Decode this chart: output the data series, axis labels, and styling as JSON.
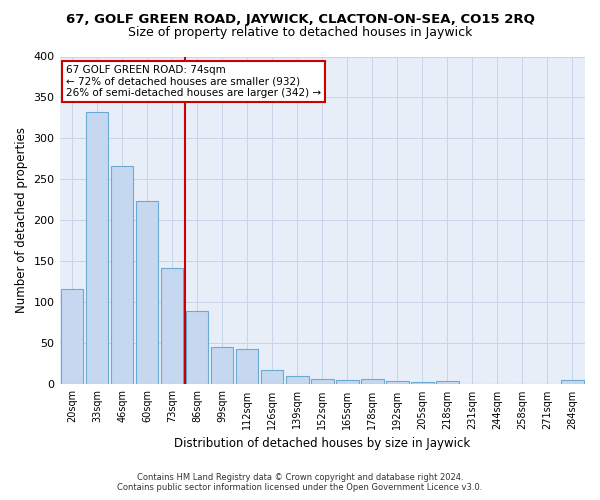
{
  "title": "67, GOLF GREEN ROAD, JAYWICK, CLACTON-ON-SEA, CO15 2RQ",
  "subtitle": "Size of property relative to detached houses in Jaywick",
  "xlabel": "Distribution of detached houses by size in Jaywick",
  "ylabel": "Number of detached properties",
  "categories": [
    "20sqm",
    "33sqm",
    "46sqm",
    "60sqm",
    "73sqm",
    "86sqm",
    "99sqm",
    "112sqm",
    "126sqm",
    "139sqm",
    "152sqm",
    "165sqm",
    "178sqm",
    "192sqm",
    "205sqm",
    "218sqm",
    "231sqm",
    "244sqm",
    "258sqm",
    "271sqm",
    "284sqm"
  ],
  "values": [
    117,
    332,
    267,
    224,
    142,
    90,
    46,
    43,
    18,
    10,
    7,
    5,
    7,
    4,
    3,
    4,
    0,
    0,
    0,
    0,
    5
  ],
  "bar_color": "#c5d8f0",
  "bar_edge_color": "#6aaad4",
  "vline_x": 4.5,
  "vline_color": "#cc0000",
  "annotation_line1": "67 GOLF GREEN ROAD: 74sqm",
  "annotation_line2": "← 72% of detached houses are smaller (932)",
  "annotation_line3": "26% of semi-detached houses are larger (342) →",
  "annotation_box_color": "#ffffff",
  "annotation_box_edge": "#cc0000",
  "ylim": [
    0,
    400
  ],
  "yticks": [
    0,
    50,
    100,
    150,
    200,
    250,
    300,
    350,
    400
  ],
  "bg_color": "#ffffff",
  "plot_bg_color": "#e8eef8",
  "grid_color": "#c8d4e8",
  "footer_line1": "Contains HM Land Registry data © Crown copyright and database right 2024.",
  "footer_line2": "Contains public sector information licensed under the Open Government Licence v3.0.",
  "title_fontsize": 9.5,
  "subtitle_fontsize": 9,
  "bar_width": 0.9
}
